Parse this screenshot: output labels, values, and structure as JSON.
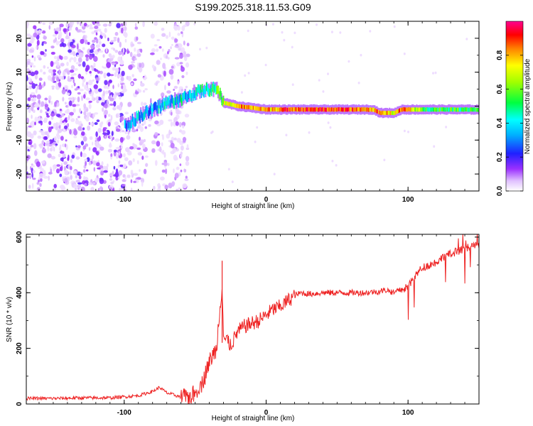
{
  "chart_data": [
    {
      "type": "heatmap",
      "title": "S199.2025.318.11.53.G09",
      "xlabel": "Height of straight line (km)",
      "ylabel": "Frequency (Hz)",
      "xlim": [
        -169,
        150
      ],
      "ylim": [
        -25,
        25
      ],
      "x_ticks": [
        "-100",
        "0",
        "100"
      ],
      "x_tick_values": [
        -100,
        0,
        100
      ],
      "y_ticks": [
        "20",
        "10",
        "0",
        "-10",
        "-20"
      ],
      "y_tick_values": [
        20,
        10,
        0,
        -10,
        -20
      ],
      "colorbar": {
        "label": "Normalized spectral amplitude",
        "range": [
          0,
          1
        ],
        "ticks": [
          "0.0",
          "0.2",
          "0.4",
          "0.6",
          "0.8"
        ],
        "tick_values": [
          0.0,
          0.2,
          0.4,
          0.6,
          0.8
        ],
        "colormap": [
          "#ffffff",
          "#e8c8ff",
          "#8a2be2",
          "#2020ff",
          "#00ffff",
          "#00ff00",
          "#ffff00",
          "#ff8000",
          "#ff0000",
          "#ff00a0"
        ]
      },
      "signal_track": {
        "x": [
          -100,
          -90,
          -80,
          -70,
          -60,
          -50,
          -40,
          -35,
          -30,
          -20,
          0,
          20,
          40,
          60,
          75,
          80,
          90,
          95,
          100,
          110,
          130,
          150
        ],
        "frequency": [
          -6,
          -3,
          -1,
          1,
          2,
          4,
          5,
          5,
          1,
          0,
          -1,
          -1,
          -1,
          -1,
          -1,
          -2,
          -2,
          -1,
          -1,
          -1,
          -1,
          -1
        ],
        "amplitude": [
          0.3,
          0.35,
          0.35,
          0.4,
          0.4,
          0.4,
          0.45,
          0.5,
          0.65,
          0.8,
          0.8,
          0.9,
          0.9,
          0.85,
          0.8,
          0.85,
          0.7,
          0.85,
          0.8,
          0.55,
          0.55,
          0.55
        ]
      }
    },
    {
      "type": "line",
      "xlabel": "Height of straight line (km)",
      "ylabel": "SNR (10 * v/v)",
      "xlim": [
        -169,
        150
      ],
      "ylim": [
        0,
        610
      ],
      "x_ticks": [
        "-100",
        "0",
        "100"
      ],
      "x_tick_values": [
        -100,
        0,
        100
      ],
      "y_ticks": [
        "0",
        "200",
        "400",
        "600"
      ],
      "y_tick_values": [
        0,
        200,
        400,
        600
      ],
      "series": [
        {
          "name": "SNR",
          "color": "#ee2222",
          "x": [
            -169,
            -150,
            -130,
            -110,
            -90,
            -80,
            -75,
            -70,
            -60,
            -55,
            -50,
            -45,
            -40,
            -35,
            -31,
            -30,
            -28,
            -25,
            -20,
            -15,
            -10,
            -5,
            0,
            5,
            10,
            15,
            20,
            25,
            30,
            40,
            50,
            60,
            70,
            80,
            85,
            90,
            95,
            100,
            105,
            110,
            115,
            120,
            125,
            130,
            135,
            140,
            145,
            150
          ],
          "y": [
            20,
            20,
            22,
            22,
            30,
            45,
            60,
            40,
            25,
            25,
            40,
            80,
            150,
            200,
            440,
            240,
            230,
            210,
            260,
            280,
            290,
            300,
            320,
            340,
            350,
            370,
            390,
            400,
            395,
            400,
            400,
            400,
            400,
            405,
            410,
            400,
            410,
            420,
            460,
            490,
            500,
            510,
            530,
            540,
            550,
            560,
            570,
            570
          ]
        }
      ]
    }
  ]
}
